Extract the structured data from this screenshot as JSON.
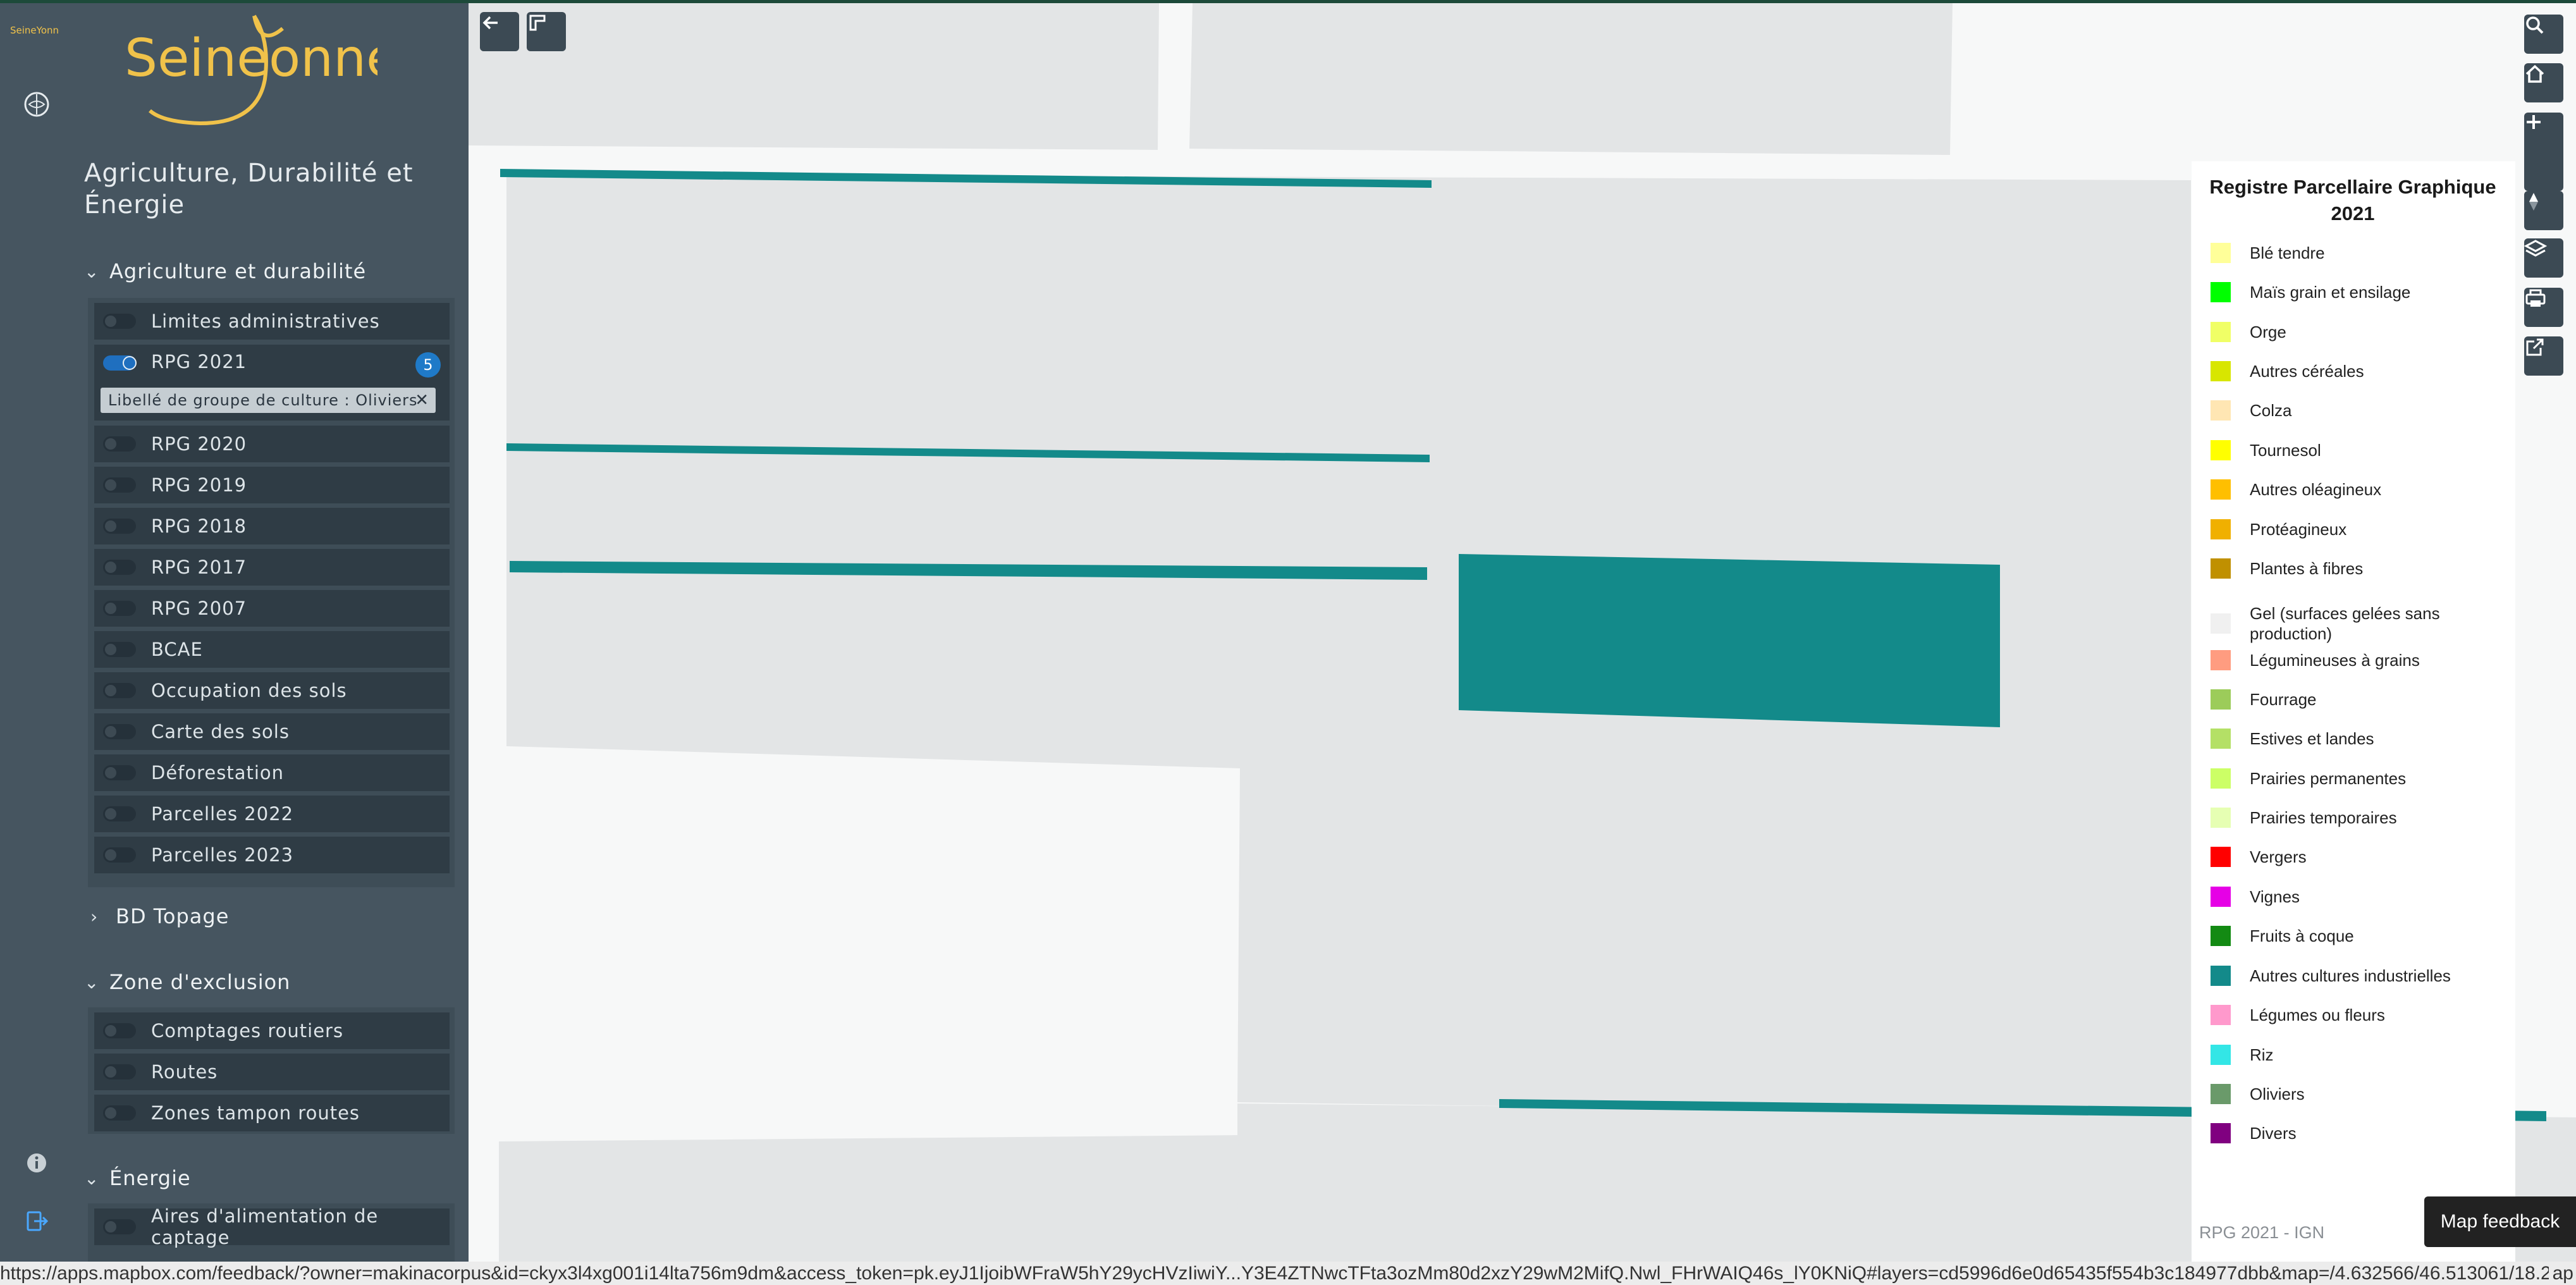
{
  "brand": {
    "mini": "Seine Yonne",
    "logo": "SeineYonne"
  },
  "app_title": "Agriculture, Durabilité et Énergie",
  "sections": [
    {
      "title": "Agriculture et durabilité",
      "layers": [
        {
          "label": "Limites administratives",
          "on": false
        },
        {
          "label": "RPG 2021",
          "on": true,
          "badge": "5",
          "filter": "Libellé de groupe de culture : Oliviers"
        },
        {
          "label": "RPG 2020",
          "on": false
        },
        {
          "label": "RPG 2019",
          "on": false
        },
        {
          "label": "RPG 2018",
          "on": false
        },
        {
          "label": "RPG 2017",
          "on": false
        },
        {
          "label": "RPG 2007",
          "on": false
        },
        {
          "label": "BCAE",
          "on": false
        },
        {
          "label": "Occupation des sols",
          "on": false
        },
        {
          "label": "Carte des sols",
          "on": false
        },
        {
          "label": "Déforestation",
          "on": false
        },
        {
          "label": "Parcelles 2022",
          "on": false
        },
        {
          "label": "Parcelles 2023",
          "on": false
        }
      ]
    },
    {
      "title": "BD Topage",
      "collapsed": true
    },
    {
      "title": "Zone d'exclusion",
      "layers": [
        {
          "label": "Comptages routiers",
          "on": false
        },
        {
          "label": "Routes",
          "on": false
        },
        {
          "label": "Zones tampon routes",
          "on": false
        }
      ]
    },
    {
      "title": "Énergie",
      "layers": [
        {
          "label": "Aires d'alimentation de captage",
          "on": false
        }
      ]
    }
  ],
  "legend": {
    "title": "Registre Parcellaire Graphique 2021",
    "items": [
      {
        "label": "Blé tendre",
        "color": "#ffff99"
      },
      {
        "label": "Maïs grain et ensilage",
        "color": "#00ff00"
      },
      {
        "label": "Orge",
        "color": "#f0ff66"
      },
      {
        "label": "Autres céréales",
        "color": "#d8e600"
      },
      {
        "label": "Colza",
        "color": "#ffe6b3"
      },
      {
        "label": "Tournesol",
        "color": "#ffff00"
      },
      {
        "label": "Autres oléagineux",
        "color": "#ffbf00"
      },
      {
        "label": "Protéagineux",
        "color": "#f0b000"
      },
      {
        "label": "Plantes à fibres",
        "color": "#c09000"
      },
      {
        "label": "Gel (surfaces gelées sans production)",
        "color": "#f0f0f0"
      },
      {
        "label": "Légumineuses à grains",
        "color": "#ff9c80"
      },
      {
        "label": "Fourrage",
        "color": "#9ccc5a"
      },
      {
        "label": "Estives et landes",
        "color": "#b4e066"
      },
      {
        "label": "Prairies permanentes",
        "color": "#ccff66"
      },
      {
        "label": "Prairies temporaires",
        "color": "#e6ffb3"
      },
      {
        "label": "Vergers",
        "color": "#ff0000"
      },
      {
        "label": "Vignes",
        "color": "#e600e6"
      },
      {
        "label": "Fruits à coque",
        "color": "#138a13"
      },
      {
        "label": "Autres cultures industrielles",
        "color": "#138a8a"
      },
      {
        "label": "Légumes ou fleurs",
        "color": "#ff99cc"
      },
      {
        "label": "Riz",
        "color": "#33e6e6"
      },
      {
        "label": "Oliviers",
        "color": "#6a9a6a"
      },
      {
        "label": "Divers",
        "color": "#800080"
      }
    ],
    "source": "RPG 2021 - IGN"
  },
  "map_feedback": "Map feedback",
  "status_url": "https://apps.mapbox.com/feedback/?owner=makinacorpus&id=ckyx3l4xg001i14lta756m9dm&access_token=pk.eyJ1IjoibWFraW5hY29ycHVzIiwiY...Y3E4ZTNwcTFta3ozMm80d2xzY29wM2MifQ.Nwl_FHrWAIQ46s_lY0KNiQ#layers=cd5996d6e0d65435f554b3c184977dbb&map=/4.632566/46.513061/18.2",
  "status_tail": "ap",
  "map_icons": [
    "back-arrow-icon",
    "draw-tool-icon",
    "search-icon",
    "home-icon",
    "zoom-in-icon",
    "zoom-out-icon",
    "compass-icon",
    "layers-icon",
    "print-icon",
    "share-icon"
  ],
  "colors": {
    "accent": "#1f7ac8",
    "parcel": "#138a8a",
    "sidebar": "#465560"
  }
}
